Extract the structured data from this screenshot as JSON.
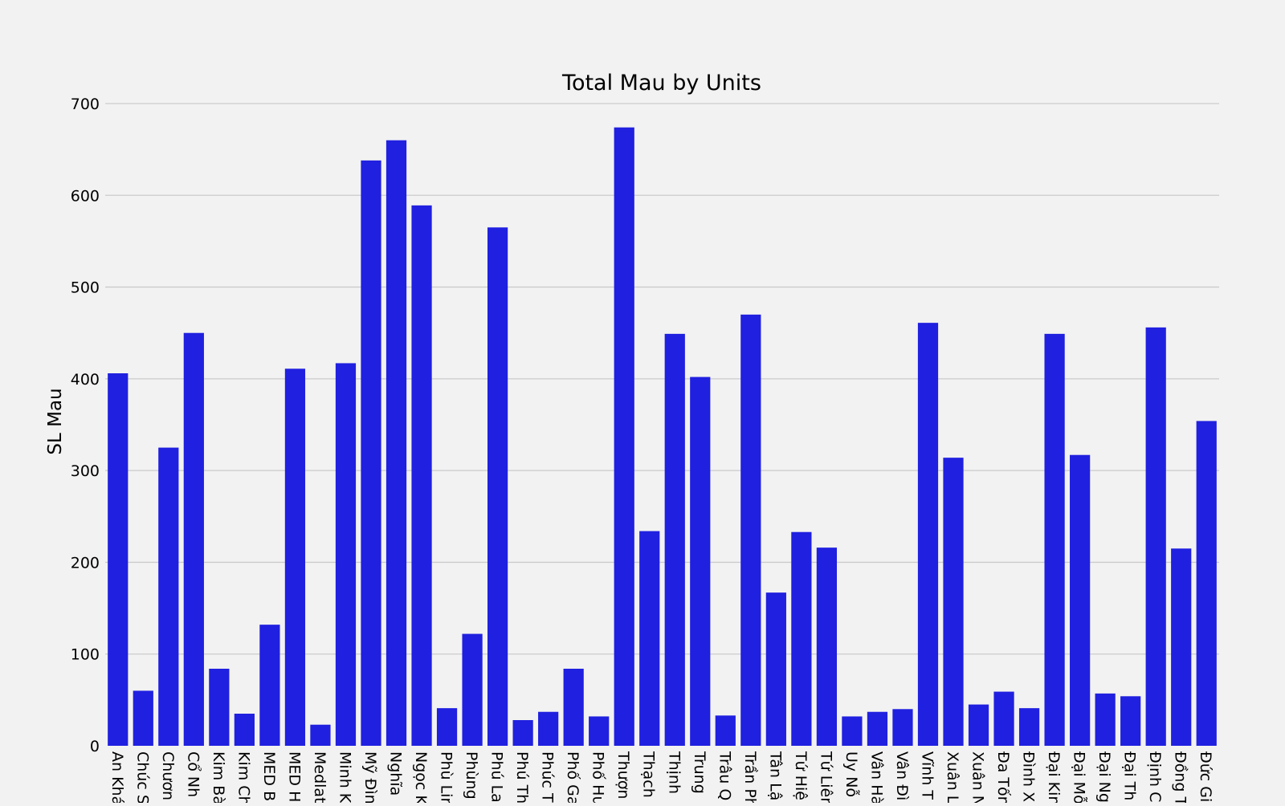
{
  "chart_data": {
    "type": "bar",
    "title": "Total Mau by Units",
    "xlabel": "",
    "ylabel": "SL Mau",
    "ylim": [
      0,
      700
    ],
    "yticks": [
      0,
      100,
      200,
      300,
      400,
      500,
      600,
      700
    ],
    "grid": "horizontal",
    "bar_color": "#2020e0",
    "categories": [
      "An Khá",
      "Chúc S",
      "Chươn",
      "Cổ Nh",
      "Kim Bà",
      "Kim Ch",
      "MED B",
      "MED H",
      "Medlat",
      "Minh K",
      "Mỹ Đìn",
      "Nghĩa",
      "Ngọc K",
      "Phù Lin",
      "Phùng",
      "Phú La",
      "Phú Th",
      "Phúc T",
      "Phố Ga",
      "Phố Hu",
      "Thượn",
      "Thạch",
      "Thịnh",
      "Trung",
      "Trâu Q",
      "Trần Ph",
      "Tân Lậ",
      "Tứ Hiệ",
      "Tứ Liên",
      "Uy Nỗ",
      "Vân Hà",
      "Vân Đì",
      "Vĩnh T",
      "Xuân L",
      "Xuân N",
      "Đa Tốn",
      "Đình X",
      "Đại Kin",
      "Đại Mỗ",
      "Đại Ng",
      "Đại Th",
      "Định C",
      "Đồng T",
      "Đức Gi"
    ],
    "values": [
      406,
      60,
      325,
      450,
      84,
      35,
      132,
      411,
      23,
      417,
      638,
      660,
      589,
      41,
      122,
      565,
      28,
      37,
      84,
      32,
      674,
      234,
      449,
      402,
      33,
      470,
      167,
      233,
      216,
      32,
      37,
      40,
      461,
      314,
      45,
      59,
      41,
      449,
      317,
      57,
      54,
      456,
      215,
      354
    ]
  }
}
